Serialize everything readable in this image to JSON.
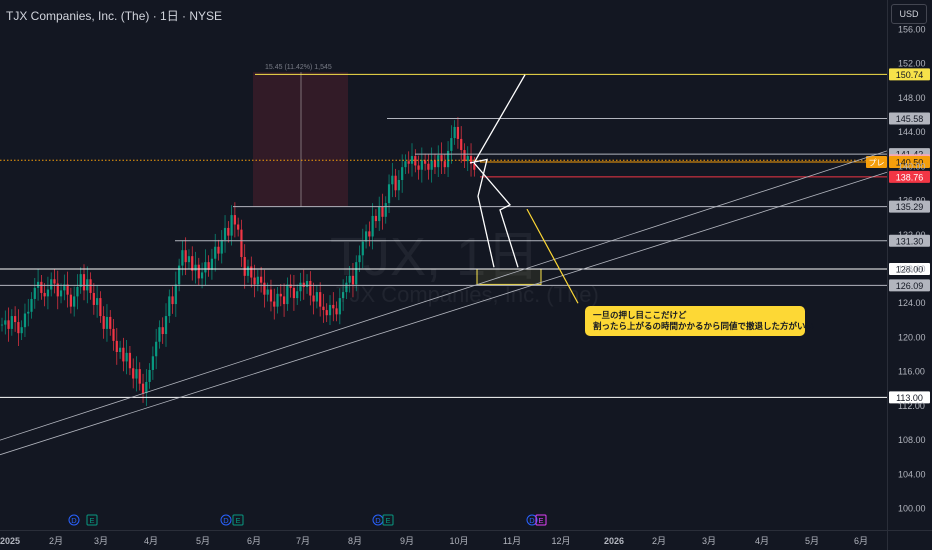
{
  "header": {
    "title": "TJX Companies, Inc. (The) · 1日 · NYSE",
    "currency": "USD"
  },
  "measure_label": "15.45 (11.42%) 1,545",
  "watermark": {
    "ticker": "TJX, 1日",
    "name": "TJX Companies, Inc. (The)"
  },
  "annotation": {
    "line1": "一旦の押し目ここだけど",
    "line2": "割ったら上がるの時間かかるから同値で撤退した方がいい"
  },
  "chart_data": {
    "type": "candlestick",
    "y_axis": {
      "range": [
        97.5,
        158.5
      ],
      "ticks": [
        100,
        104,
        108,
        112,
        116,
        120,
        124,
        128,
        132,
        136,
        140,
        144,
        148,
        152,
        156
      ]
    },
    "x_axis": {
      "labels": [
        "2025",
        "2月",
        "3月",
        "4月",
        "5月",
        "6月",
        "7月",
        "8月",
        "9月",
        "10月",
        "11月",
        "12月",
        "2026",
        "2月",
        "3月",
        "4月",
        "5月",
        "6月"
      ]
    },
    "horizontal_levels": [
      {
        "value": 150.74,
        "label": "150.74",
        "color": "#f7e24a"
      },
      {
        "value": 145.58,
        "label": "145.58",
        "color": "#b2b5be"
      },
      {
        "value": 141.42,
        "label": "141.42",
        "color": "#b2b5be"
      },
      {
        "value": 140.71,
        "label": "140.71",
        "color": "#f7a8b4"
      },
      {
        "value": 140.5,
        "label": "140.50",
        "color": "#f59e0b",
        "tag": "プレ"
      },
      {
        "value": 138.76,
        "label": "138.76",
        "color": "#f23645"
      },
      {
        "value": 135.29,
        "label": "135.29",
        "color": "#b2b5be"
      },
      {
        "value": 131.3,
        "label": "131.30",
        "color": "#b2b5be"
      },
      {
        "value": 128.0,
        "label": "128.00",
        "color": "#ffffff"
      },
      {
        "value": 126.09,
        "label": "126.09",
        "color": "#b2b5be"
      },
      {
        "value": 113.0,
        "label": "113.00",
        "color": "#ffffff"
      }
    ],
    "price_closes": [
      121.5,
      122.0,
      121.0,
      122.5,
      121.8,
      120.5,
      121.2,
      122.8,
      123.0,
      124.5,
      125.8,
      126.5,
      125.2,
      124.8,
      125.6,
      126.8,
      126.3,
      124.8,
      125.5,
      126.2,
      125.0,
      123.6,
      124.8,
      125.9,
      127.4,
      125.5,
      126.8,
      125.2,
      123.8,
      124.6,
      122.5,
      121.0,
      122.4,
      121.0,
      119.6,
      118.3,
      118.8,
      117.2,
      118.2,
      116.4,
      115.2,
      116.3,
      114.6,
      113.5,
      114.8,
      116.2,
      117.8,
      119.5,
      121.2,
      120.4,
      122.5,
      124.8,
      123.9,
      126.2,
      128.4,
      130.2,
      128.8,
      129.5,
      127.8,
      128.5,
      126.9,
      127.6,
      128.8,
      127.9,
      129.2,
      130.6,
      129.8,
      131.4,
      132.8,
      131.9,
      134.3,
      133.2,
      132.6,
      129.4,
      127.2,
      128.3,
      127.0,
      126.2,
      127.1,
      126.4,
      125.0,
      125.6,
      124.2,
      123.6,
      125.1,
      124.8,
      123.9,
      126.2,
      125.8,
      124.6,
      125.4,
      126.4,
      125.9,
      126.6,
      124.9,
      124.2,
      125.3,
      123.6,
      123.2,
      122.6,
      123.8,
      123.4,
      122.7,
      124.6,
      125.3,
      126.4,
      127.2,
      126.2,
      128.8,
      129.6,
      131.2,
      132.4,
      131.8,
      134.2,
      133.6,
      135.3,
      134.1,
      135.7,
      137.9,
      138.9,
      137.2,
      138.4,
      139.9,
      140.6,
      140.3,
      141.2,
      140.1,
      139.6,
      140.7,
      140.3,
      139.6,
      140.7,
      139.9,
      141.3,
      140.6,
      139.9,
      141.8,
      143.3,
      144.6,
      143.2,
      141.9,
      140.6,
      141.2,
      140.3,
      139.6
    ],
    "projection_box": {
      "y_range": [
        126.2,
        128.0
      ]
    },
    "loss_zone": {
      "y_range": [
        135.3,
        151.0
      ]
    }
  }
}
